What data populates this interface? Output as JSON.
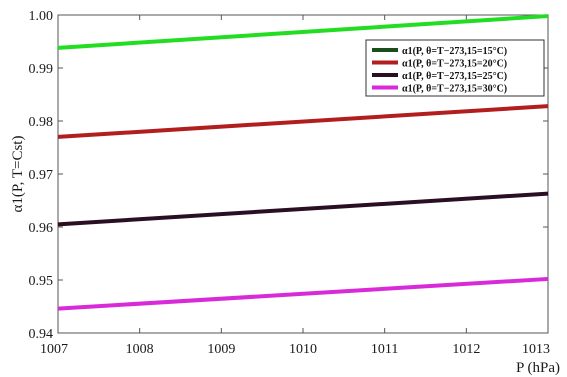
{
  "chart_data": {
    "type": "line",
    "xlabel": "P (hPa)",
    "ylabel": "α1(P, T=Cst)",
    "xlim": [
      1007,
      1013
    ],
    "ylim": [
      0.94,
      1.0
    ],
    "x_ticks": [
      "1007",
      "1008",
      "1009",
      "1010",
      "1011",
      "1012",
      "1013"
    ],
    "y_ticks": [
      "0.94",
      "0.95",
      "0.96",
      "0.97",
      "0.98",
      "0.99",
      "1.00"
    ],
    "grid": false,
    "legend_position": "top-right",
    "series": [
      {
        "name": "α1(P, θ=T−273,15=15°C)",
        "color": "#22dd22",
        "legend_color": "#1a4d1a",
        "x": [
          1007,
          1013
        ],
        "y": [
          0.9938,
          0.9998
        ]
      },
      {
        "name": "α1(P, θ=T−273,15=20°C)",
        "color": "#b21e1e",
        "legend_color": "#b21e1e",
        "x": [
          1007,
          1013
        ],
        "y": [
          0.977,
          0.9828
        ]
      },
      {
        "name": "α1(P, θ=T−273,15=25°C)",
        "color": "#2a0f24",
        "legend_color": "#2a0f24",
        "x": [
          1007,
          1013
        ],
        "y": [
          0.9605,
          0.9663
        ]
      },
      {
        "name": "α1(P, θ=T−273,15=30°C)",
        "color": "#d92ad9",
        "legend_color": "#d92ad9",
        "x": [
          1007,
          1013
        ],
        "y": [
          0.9446,
          0.9502
        ]
      }
    ]
  }
}
